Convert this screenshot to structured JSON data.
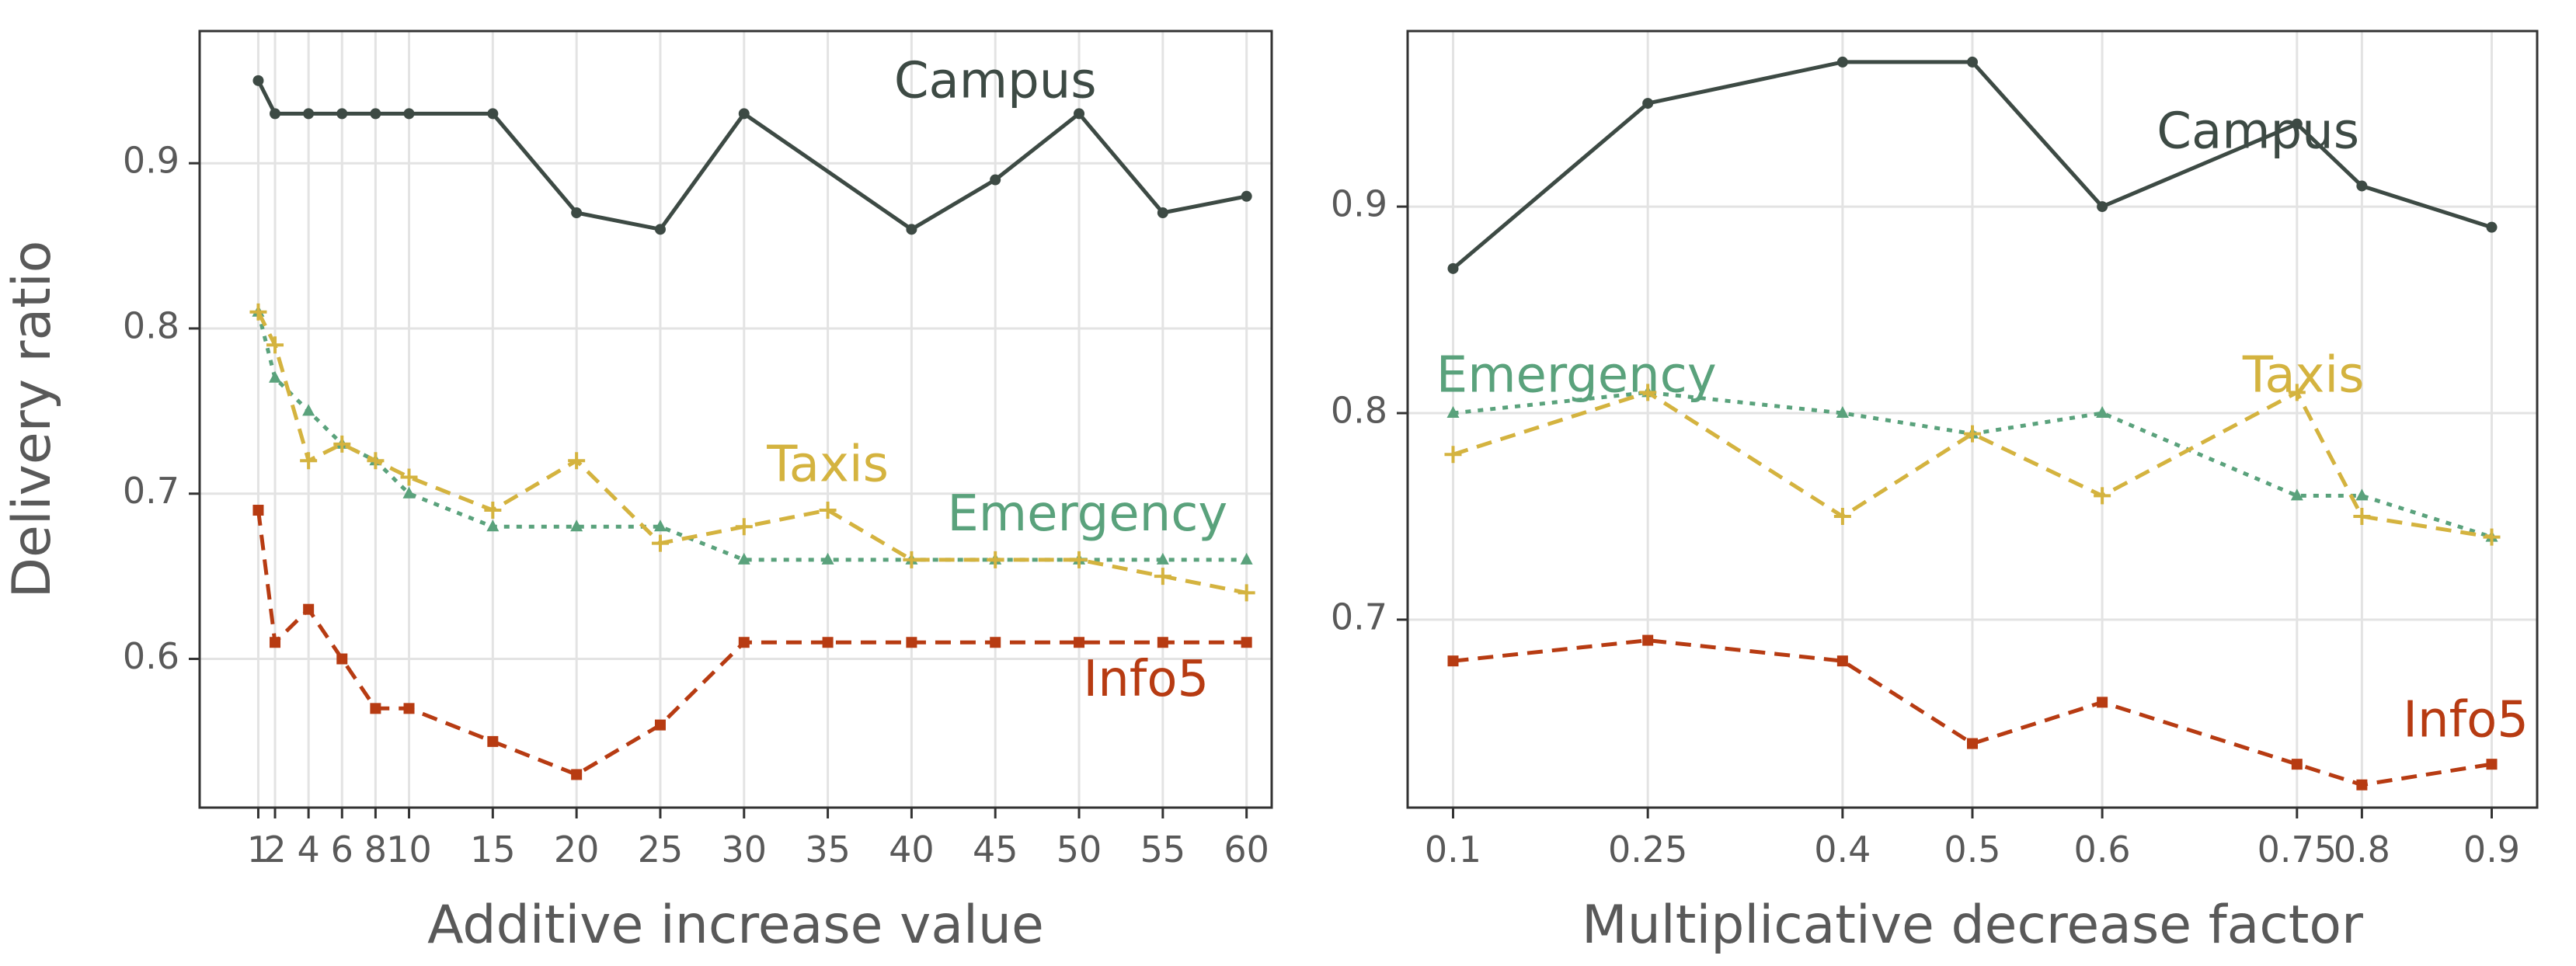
{
  "chart_data": [
    {
      "type": "line",
      "xlabel": "Additive increase value",
      "ylabel": "Delivery ratio",
      "xlim": [
        -2.5,
        61.5
      ],
      "ylim": [
        0.51,
        0.98
      ],
      "xticks": [
        1,
        2,
        4,
        6,
        8,
        10,
        15,
        20,
        25,
        30,
        35,
        40,
        45,
        50,
        55,
        60
      ],
      "xtick_labels": [
        "1",
        "2",
        "4",
        "6",
        "8",
        "10",
        "15",
        "20",
        "25",
        "30",
        "35",
        "40",
        "45",
        "50",
        "55",
        "60"
      ],
      "yticks": [
        0.6,
        0.7,
        0.8,
        0.9
      ],
      "ytick_labels": [
        "0.6",
        "0.7",
        "0.8",
        "0.9"
      ],
      "grid": true,
      "series": [
        {
          "name": "Campus",
          "color": "#3d4a44",
          "dash": "solid",
          "marker": "circle",
          "label_x": 45,
          "label_y": 0.948,
          "x": [
            1,
            2,
            4,
            6,
            8,
            10,
            15,
            20,
            25,
            30,
            40,
            45,
            50,
            55,
            60
          ],
          "values": [
            0.95,
            0.93,
            0.93,
            0.93,
            0.93,
            0.93,
            0.93,
            0.87,
            0.86,
            0.93,
            0.86,
            0.89,
            0.93,
            0.87,
            0.88
          ]
        },
        {
          "name": "Emergency",
          "color": "#5aa27c",
          "dash": "dotted",
          "marker": "triangle",
          "label_x": 50.5,
          "label_y": 0.686,
          "x": [
            1,
            2,
            4,
            6,
            8,
            10,
            15,
            20,
            25,
            30,
            35,
            40,
            45,
            50,
            55,
            60
          ],
          "values": [
            0.81,
            0.77,
            0.75,
            0.73,
            0.72,
            0.7,
            0.68,
            0.68,
            0.68,
            0.66,
            0.66,
            0.66,
            0.66,
            0.66,
            0.66,
            0.66
          ]
        },
        {
          "name": "Taxis",
          "color": "#d4b33f",
          "dash": "dashed",
          "marker": "plus",
          "label_x": 35,
          "label_y": 0.716,
          "x": [
            1,
            2,
            4,
            6,
            8,
            10,
            15,
            20,
            25,
            30,
            35,
            40,
            45,
            50,
            55,
            60
          ],
          "values": [
            0.81,
            0.79,
            0.72,
            0.73,
            0.72,
            0.71,
            0.69,
            0.72,
            0.67,
            0.68,
            0.69,
            0.66,
            0.66,
            0.66,
            0.65,
            0.64
          ]
        },
        {
          "name": "Info5",
          "color": "#b73b12",
          "dash": "dashed",
          "marker": "square",
          "label_x": 54,
          "label_y": 0.586,
          "x": [
            1,
            2,
            4,
            6,
            8,
            10,
            15,
            20,
            25,
            30,
            35,
            40,
            45,
            50,
            55,
            60
          ],
          "values": [
            0.69,
            0.61,
            0.63,
            0.6,
            0.57,
            0.57,
            0.55,
            0.53,
            0.56,
            0.61,
            0.61,
            0.61,
            0.61,
            0.61,
            0.61,
            0.61
          ]
        }
      ]
    },
    {
      "type": "line",
      "xlabel": "Multiplicative decrease factor",
      "ylabel": "",
      "xlim": [
        0.065,
        0.935
      ],
      "ylim": [
        0.609,
        0.985
      ],
      "xticks": [
        0.1,
        0.25,
        0.4,
        0.5,
        0.6,
        0.75,
        0.8,
        0.9
      ],
      "xtick_labels": [
        "0.1",
        "0.25",
        "0.4",
        "0.5",
        "0.6",
        "0.75",
        "0.8",
        "0.9"
      ],
      "yticks": [
        0.7,
        0.8,
        0.9
      ],
      "ytick_labels": [
        "0.7",
        "0.8",
        "0.9"
      ],
      "grid": true,
      "series": [
        {
          "name": "Campus",
          "color": "#3d4a44",
          "dash": "solid",
          "marker": "circle",
          "label_x": 0.72,
          "label_y": 0.935,
          "x": [
            0.1,
            0.25,
            0.4,
            0.5,
            0.6,
            0.75,
            0.8,
            0.9
          ],
          "values": [
            0.87,
            0.95,
            0.97,
            0.97,
            0.9,
            0.94,
            0.91,
            0.89
          ]
        },
        {
          "name": "Emergency",
          "color": "#5aa27c",
          "dash": "dotted",
          "marker": "triangle",
          "label_x": 0.195,
          "label_y": 0.817,
          "x": [
            0.1,
            0.25,
            0.4,
            0.5,
            0.6,
            0.75,
            0.8,
            0.9
          ],
          "values": [
            0.8,
            0.81,
            0.8,
            0.79,
            0.8,
            0.76,
            0.76,
            0.74
          ]
        },
        {
          "name": "Taxis",
          "color": "#d4b33f",
          "dash": "dashed",
          "marker": "plus",
          "label_x": 0.755,
          "label_y": 0.817,
          "x": [
            0.1,
            0.25,
            0.4,
            0.5,
            0.6,
            0.75,
            0.8,
            0.9
          ],
          "values": [
            0.78,
            0.81,
            0.75,
            0.79,
            0.76,
            0.81,
            0.75,
            0.74
          ]
        },
        {
          "name": "Info5",
          "color": "#b73b12",
          "dash": "dashed",
          "marker": "square",
          "label_x": 0.88,
          "label_y": 0.65,
          "x": [
            0.1,
            0.25,
            0.4,
            0.5,
            0.6,
            0.75,
            0.8,
            0.9
          ],
          "values": [
            0.68,
            0.69,
            0.68,
            0.64,
            0.66,
            0.63,
            0.62,
            0.63
          ]
        }
      ]
    }
  ]
}
